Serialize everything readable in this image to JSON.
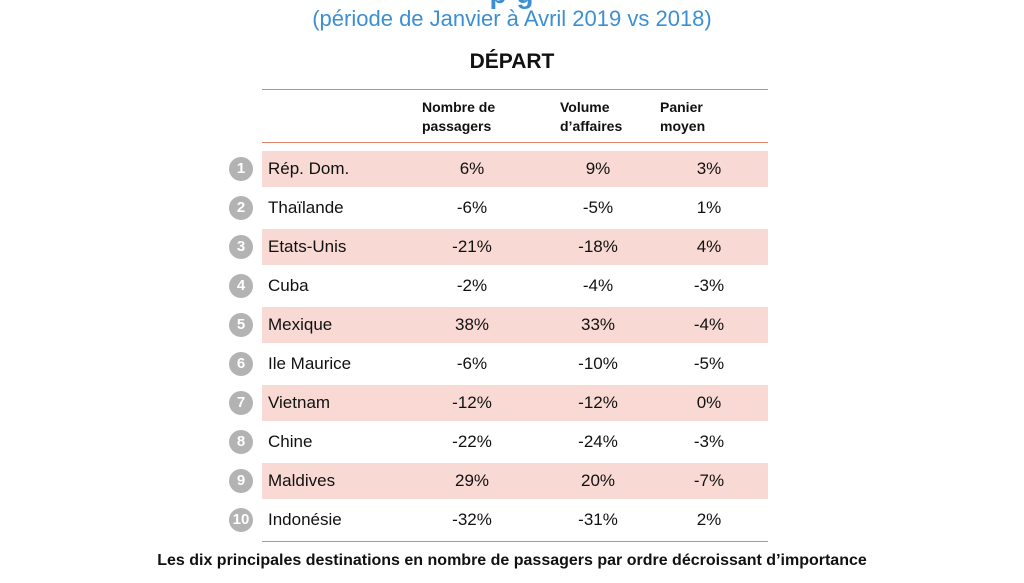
{
  "subtitle": "(période de Janvier à Avril 2019 vs 2018)",
  "section_title": "DÉPART",
  "columns": {
    "col1_line1": "Nombre de",
    "col1_line2": "passagers",
    "col2_line1": "Volume",
    "col2_line2": "d’affaires",
    "col3_line1": "Panier",
    "col3_line2": "moyen"
  },
  "rows": [
    {
      "rank": "1",
      "name": "Rép. Dom.",
      "passagers": "6%",
      "volume": "9%",
      "panier": "3%"
    },
    {
      "rank": "2",
      "name": "Thaïlande",
      "passagers": "-6%",
      "volume": "-5%",
      "panier": "1%"
    },
    {
      "rank": "3",
      "name": "Etats-Unis",
      "passagers": "-21%",
      "volume": "-18%",
      "panier": "4%"
    },
    {
      "rank": "4",
      "name": "Cuba",
      "passagers": "-2%",
      "volume": "-4%",
      "panier": "-3%"
    },
    {
      "rank": "5",
      "name": "Mexique",
      "passagers": "38%",
      "volume": "33%",
      "panier": "-4%"
    },
    {
      "rank": "6",
      "name": "Ile Maurice",
      "passagers": "-6%",
      "volume": "-10%",
      "panier": "-5%"
    },
    {
      "rank": "7",
      "name": "Vietnam",
      "passagers": "-12%",
      "volume": "-12%",
      "panier": "0%"
    },
    {
      "rank": "8",
      "name": "Chine",
      "passagers": "-22%",
      "volume": "-24%",
      "panier": "-3%"
    },
    {
      "rank": "9",
      "name": "Maldives",
      "passagers": "29%",
      "volume": "20%",
      "panier": "-7%"
    },
    {
      "rank": "10",
      "name": "Indonésie",
      "passagers": "-32%",
      "volume": "-31%",
      "panier": "2%"
    }
  ],
  "caption": "Les dix principales destinations en nombre de passagers par ordre décroissant d’importance",
  "colors": {
    "accent_blue": "#3d8fd3",
    "row_shade": "#f8d9d3",
    "rule": "#e0856a",
    "badge": "#b3b3b3"
  }
}
